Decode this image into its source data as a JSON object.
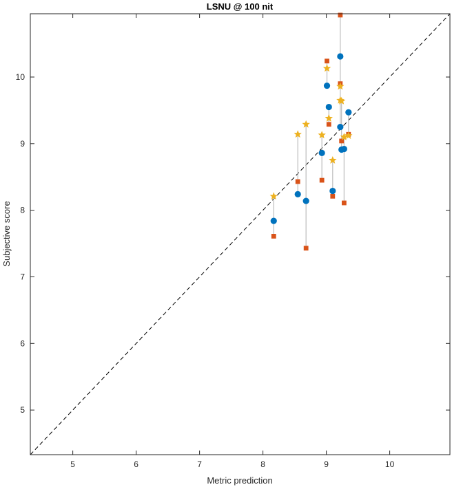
{
  "chart_data": {
    "type": "scatter",
    "title": "LSNU @ 100 nit",
    "xlabel": "Metric prediction",
    "ylabel": "Subjective score",
    "xlim": [
      4.33,
      10.95
    ],
    "ylim": [
      4.33,
      10.95
    ],
    "xticks": [
      5,
      6,
      7,
      8,
      9,
      10
    ],
    "yticks": [
      5,
      6,
      7,
      8,
      9,
      10
    ],
    "grid": false,
    "reference_line": {
      "style": "dashed",
      "color": "#000000",
      "from": [
        4.33,
        4.33
      ],
      "to": [
        10.95,
        10.95
      ]
    },
    "series": [
      {
        "marker": "circle",
        "color": "#0072BD",
        "points": [
          {
            "x": 8.17,
            "y": 7.84
          },
          {
            "x": 8.55,
            "y": 8.24
          },
          {
            "x": 8.68,
            "y": 8.14
          },
          {
            "x": 8.93,
            "y": 8.86
          },
          {
            "x": 9.01,
            "y": 9.87
          },
          {
            "x": 9.04,
            "y": 9.55
          },
          {
            "x": 9.1,
            "y": 8.29
          },
          {
            "x": 9.22,
            "y": 10.31
          },
          {
            "x": 9.22,
            "y": 9.25
          },
          {
            "x": 9.24,
            "y": 8.91
          },
          {
            "x": 9.28,
            "y": 8.92
          },
          {
            "x": 9.35,
            "y": 9.47
          }
        ]
      },
      {
        "marker": "square",
        "color": "#D95319",
        "points": [
          {
            "x": 8.17,
            "y": 7.61
          },
          {
            "x": 8.55,
            "y": 8.43
          },
          {
            "x": 8.68,
            "y": 7.43
          },
          {
            "x": 8.93,
            "y": 8.45
          },
          {
            "x": 9.01,
            "y": 10.24
          },
          {
            "x": 9.04,
            "y": 9.29
          },
          {
            "x": 9.1,
            "y": 8.21
          },
          {
            "x": 9.22,
            "y": 10.93
          },
          {
            "x": 9.22,
            "y": 9.9
          },
          {
            "x": 9.24,
            "y": 9.04
          },
          {
            "x": 9.28,
            "y": 8.11
          },
          {
            "x": 9.35,
            "y": 9.14
          }
        ]
      },
      {
        "marker": "star",
        "color": "#EDB120",
        "points": [
          {
            "x": 8.17,
            "y": 8.21
          },
          {
            "x": 8.55,
            "y": 9.14
          },
          {
            "x": 8.68,
            "y": 9.29
          },
          {
            "x": 8.93,
            "y": 9.13
          },
          {
            "x": 9.01,
            "y": 10.13
          },
          {
            "x": 9.04,
            "y": 9.38
          },
          {
            "x": 9.1,
            "y": 8.75
          },
          {
            "x": 9.22,
            "y": 9.86
          },
          {
            "x": 9.22,
            "y": 9.65
          },
          {
            "x": 9.24,
            "y": 9.64
          },
          {
            "x": 9.28,
            "y": 9.1
          },
          {
            "x": 9.35,
            "y": 9.12
          }
        ]
      }
    ],
    "connector_lines": {
      "color": "#bdbdbd",
      "description": "vertical range line at each x spanning the three series"
    }
  }
}
